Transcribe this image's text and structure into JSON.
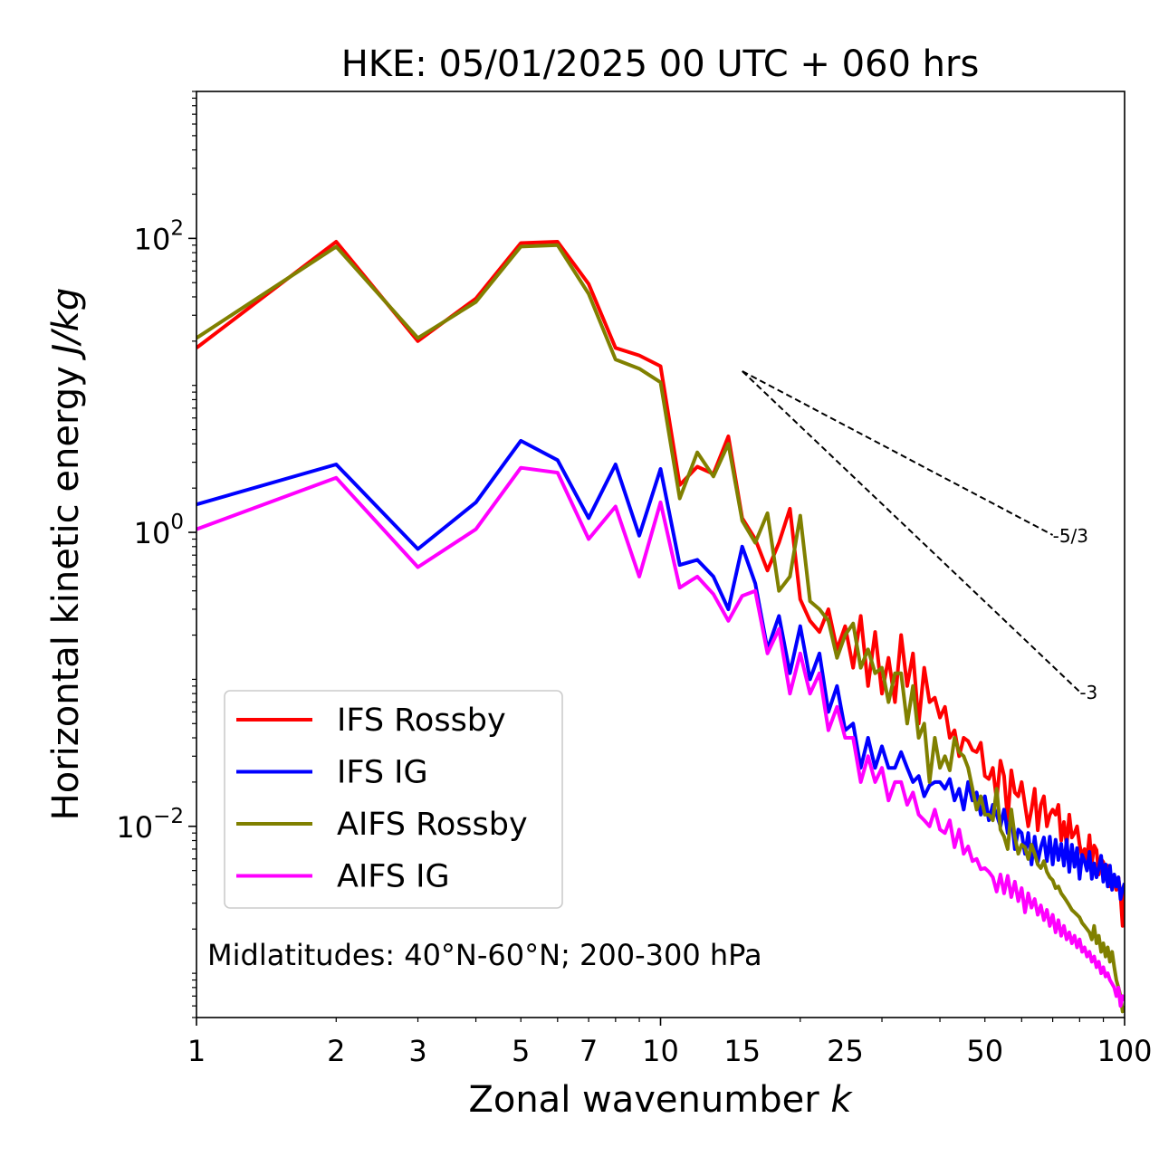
{
  "chart_data": {
    "type": "line",
    "title": "HKE: 05/01/2025 00 UTC + 060 hrs",
    "xlabel": "Zonal wavenumber",
    "xlabel_var": "k",
    "ylabel": "Horizontal kinetic energy",
    "ylabel_units": "J/kg",
    "x_scale": "log",
    "y_scale": "log",
    "xlim": [
      1,
      100
    ],
    "ylim": [
      0.0005,
      1000
    ],
    "x_ticks": [
      1,
      2,
      3,
      5,
      7,
      10,
      15,
      25,
      50,
      100
    ],
    "x_tick_labels": [
      "1",
      "2",
      "3",
      "5",
      "7",
      "10",
      "15",
      "25",
      "50",
      "100"
    ],
    "y_ticks": [
      0.01,
      1,
      100
    ],
    "y_tick_labels": [
      {
        "base": "10",
        "exp": "−2"
      },
      {
        "base": "10",
        "exp": "0"
      },
      {
        "base": "10",
        "exp": "2"
      }
    ],
    "legend_position": "lower-left",
    "grid": false,
    "annotation": "Midlatitudes: 40°N-60°N; 200-300 hPa",
    "reference_slopes": [
      {
        "label": "-5/3",
        "slope": -1.6667,
        "x0": 15,
        "y0": 12.5,
        "x1": 70
      },
      {
        "label": "-3",
        "slope": -3,
        "x0": 15,
        "y0": 12.5,
        "x1": 80
      }
    ],
    "x": [
      1,
      2,
      3,
      4,
      5,
      6,
      7,
      8,
      9,
      10,
      11,
      12,
      13,
      14,
      15,
      16,
      17,
      18,
      19,
      20,
      21,
      22,
      23,
      24,
      25,
      26,
      27,
      28,
      29,
      30,
      31,
      32,
      33,
      34,
      35,
      36,
      37,
      38,
      39,
      40,
      41,
      42,
      43,
      44,
      45,
      46,
      47,
      48,
      49,
      50,
      51,
      52,
      53,
      54,
      55,
      56,
      57,
      58,
      59,
      60,
      61,
      62,
      63,
      64,
      65,
      66,
      67,
      68,
      69,
      70,
      71,
      72,
      73,
      74,
      75,
      76,
      77,
      78,
      79,
      80,
      81,
      82,
      83,
      84,
      85,
      86,
      87,
      88,
      89,
      90,
      91,
      92,
      93,
      94,
      95,
      96,
      97,
      98,
      99,
      100
    ],
    "series": [
      {
        "name": "IFS Rossby",
        "color": "#ff0000",
        "values": [
          18,
          95,
          20,
          39,
          93,
          95,
          49,
          18,
          16,
          13.5,
          2.1,
          2.8,
          2.5,
          4.5,
          1.25,
          0.9,
          0.55,
          0.85,
          1.45,
          0.35,
          0.25,
          0.21,
          0.3,
          0.16,
          0.23,
          0.12,
          0.27,
          0.09,
          0.21,
          0.08,
          0.14,
          0.07,
          0.2,
          0.09,
          0.15,
          0.05,
          0.12,
          0.07,
          0.075,
          0.055,
          0.065,
          0.04,
          0.045,
          0.03,
          0.04,
          0.038,
          0.033,
          0.032,
          0.037,
          0.022,
          0.021,
          0.025,
          0.015,
          0.028,
          0.022,
          0.011,
          0.024,
          0.017,
          0.016,
          0.02,
          0.014,
          0.01,
          0.013,
          0.018,
          0.0094,
          0.014,
          0.016,
          0.01,
          0.012,
          0.013,
          0.012,
          0.014,
          0.008,
          0.0107,
          0.0074,
          0.012,
          0.0084,
          0.009,
          0.01,
          0.0075,
          0.0062,
          0.007,
          0.006,
          0.0087,
          0.0055,
          0.0074,
          0.0069,
          0.0047,
          0.006,
          0.0057,
          0.0046,
          0.0054,
          0.0039,
          0.0042,
          0.0045,
          0.0037,
          0.0045,
          0.0034,
          0.0021,
          0.0038
        ]
      },
      {
        "name": "IFS IG",
        "color": "#0000ff",
        "values": [
          1.55,
          2.9,
          0.77,
          1.6,
          4.2,
          3.1,
          1.25,
          2.9,
          0.95,
          2.7,
          0.6,
          0.65,
          0.5,
          0.3,
          0.8,
          0.45,
          0.16,
          0.27,
          0.11,
          0.23,
          0.1,
          0.15,
          0.06,
          0.09,
          0.045,
          0.05,
          0.025,
          0.04,
          0.025,
          0.035,
          0.025,
          0.025,
          0.032,
          0.025,
          0.02,
          0.022,
          0.016,
          0.019,
          0.02,
          0.02,
          0.018,
          0.021,
          0.015,
          0.018,
          0.013,
          0.02,
          0.015,
          0.017,
          0.012,
          0.016,
          0.011,
          0.014,
          0.012,
          0.01,
          0.013,
          0.009,
          0.012,
          0.007,
          0.0095,
          0.009,
          0.0065,
          0.009,
          0.0055,
          0.0085,
          0.0057,
          0.0072,
          0.0084,
          0.0058,
          0.0085,
          0.0055,
          0.0081,
          0.0059,
          0.0076,
          0.0054,
          0.0081,
          0.0049,
          0.0075,
          0.0053,
          0.0071,
          0.0044,
          0.0064,
          0.0058,
          0.005,
          0.0067,
          0.0044,
          0.0056,
          0.0045,
          0.0052,
          0.0063,
          0.0042,
          0.0055,
          0.0039,
          0.0054,
          0.0037,
          0.0047,
          0.0039,
          0.0045,
          0.0032,
          0.0037,
          0.0041
        ]
      },
      {
        "name": "AIFS Rossby",
        "color": "#808000",
        "values": [
          21,
          88,
          21,
          37,
          88,
          90,
          42,
          15,
          13,
          10.5,
          1.7,
          3.5,
          2.4,
          4,
          1.2,
          0.85,
          1.35,
          0.4,
          0.5,
          1.3,
          0.34,
          0.3,
          0.25,
          0.14,
          0.2,
          0.24,
          0.12,
          0.16,
          0.11,
          0.12,
          0.07,
          0.11,
          0.11,
          0.05,
          0.09,
          0.04,
          0.05,
          0.02,
          0.04,
          0.025,
          0.03,
          0.024,
          0.04,
          0.032,
          0.03,
          0.025,
          0.018,
          0.013,
          0.016,
          0.012,
          0.012,
          0.011,
          0.018,
          0.0095,
          0.0085,
          0.007,
          0.013,
          0.0085,
          0.0065,
          0.0075,
          0.0072,
          0.006,
          0.0075,
          0.0065,
          0.0055,
          0.0052,
          0.0058,
          0.0049,
          0.0045,
          0.0043,
          0.0038,
          0.0039,
          0.0035,
          0.0033,
          0.0031,
          0.0029,
          0.0027,
          0.0026,
          0.0025,
          0.0024,
          0.0022,
          0.0021,
          0.002,
          0.0019,
          0.0017,
          0.0021,
          0.0016,
          0.0018,
          0.0014,
          0.0016,
          0.0013,
          0.0015,
          0.0012,
          0.0014,
          0.0011,
          0.0009,
          0.0008,
          0.0007,
          0.00055,
          0.0006
        ]
      },
      {
        "name": "AIFS IG",
        "color": "#ff00ff",
        "values": [
          1.05,
          2.35,
          0.58,
          1.05,
          2.75,
          2.55,
          0.9,
          1.5,
          0.5,
          1.6,
          0.42,
          0.5,
          0.38,
          0.25,
          0.37,
          0.4,
          0.15,
          0.22,
          0.08,
          0.15,
          0.08,
          0.11,
          0.045,
          0.065,
          0.04,
          0.04,
          0.02,
          0.03,
          0.02,
          0.025,
          0.015,
          0.02,
          0.02,
          0.014,
          0.017,
          0.012,
          0.011,
          0.01,
          0.013,
          0.0095,
          0.009,
          0.011,
          0.0072,
          0.0095,
          0.0065,
          0.0073,
          0.0058,
          0.006,
          0.0051,
          0.0052,
          0.0049,
          0.0045,
          0.0036,
          0.0047,
          0.0035,
          0.0046,
          0.0033,
          0.0042,
          0.0031,
          0.0038,
          0.0026,
          0.0035,
          0.0028,
          0.0032,
          0.0025,
          0.0029,
          0.0023,
          0.0027,
          0.0021,
          0.0025,
          0.0019,
          0.0023,
          0.0018,
          0.0021,
          0.0017,
          0.0019,
          0.0016,
          0.0018,
          0.0015,
          0.0017,
          0.0014,
          0.0015,
          0.0013,
          0.0014,
          0.0012,
          0.0013,
          0.0011,
          0.0012,
          0.001,
          0.0011,
          0.00095,
          0.001,
          0.0009,
          0.00085,
          0.0008,
          0.0007,
          0.0008,
          0.0006,
          0.0007,
          0.00065
        ]
      }
    ]
  }
}
